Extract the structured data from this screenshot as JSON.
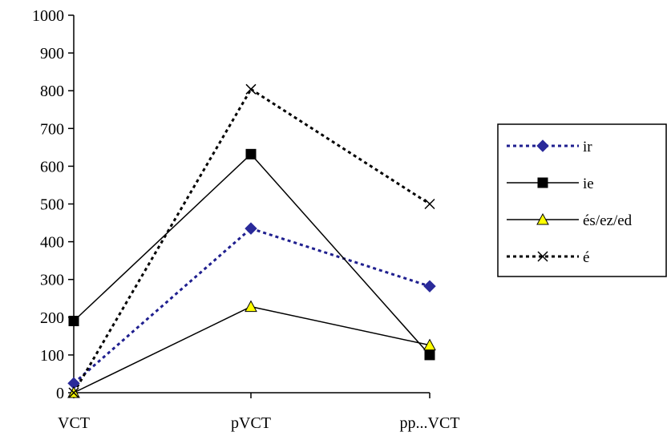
{
  "chart_data": {
    "type": "line",
    "categories": [
      "VCT",
      "pVCT",
      "pp...VCT"
    ],
    "ylim": [
      0,
      1000
    ],
    "y_ticks": [
      "0",
      "100",
      "200",
      "300",
      "400",
      "500",
      "600",
      "700",
      "800",
      "900",
      "1000"
    ],
    "grid": false,
    "legend_position": "right",
    "series": [
      {
        "name": "ir",
        "values": [
          25,
          435,
          282
        ],
        "color": "#1f1f8f",
        "line_style": "dotted",
        "marker": "diamond",
        "marker_fill": "#2a2a9a"
      },
      {
        "name": "ie",
        "values": [
          190,
          632,
          100
        ],
        "color": "#000000",
        "line_style": "solid",
        "marker": "square",
        "marker_fill": "#000000"
      },
      {
        "name": "és/ez/ed",
        "values": [
          0,
          228,
          126
        ],
        "color": "#000000",
        "line_style": "solid",
        "marker": "triangle",
        "marker_fill": "#ffff00"
      },
      {
        "name": "é",
        "values": [
          0,
          804,
          500
        ],
        "color": "#000000",
        "line_style": "dotted",
        "marker": "x",
        "marker_fill": "none"
      }
    ]
  }
}
